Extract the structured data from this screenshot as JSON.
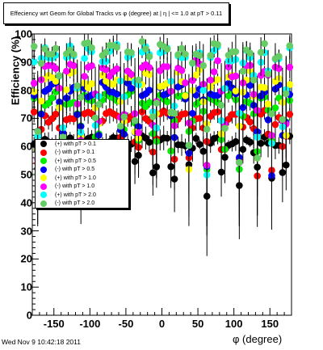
{
  "title": "Effeciency wrt Geom for Global Tracks vs φ (degree) at |  η | <= 1.0 at pT > 0.11",
  "date_stamp": "Wed Nov  9 10:42:18 2011",
  "colors": {
    "background": "#ffffff",
    "frame": "#000000",
    "error_bar": "#000000"
  },
  "chart_data": {
    "type": "scatter",
    "title": "Effeciency wrt Geom for Global Tracks vs φ (degree) at |  η | <= 1.0 at pT > 0.11",
    "xlabel": "φ (degree)",
    "ylabel": "Efficiency (%)",
    "xlim": [
      -180,
      180
    ],
    "ylim": [
      0,
      100
    ],
    "x_ticks": [
      -150,
      -100,
      -50,
      0,
      50,
      100,
      150
    ],
    "y_ticks": [
      0,
      10,
      20,
      30,
      40,
      50,
      60,
      70,
      80,
      90,
      100
    ],
    "grid": false,
    "legend_position": "center-left",
    "series": [
      {
        "name": "(+) with pT > 0.1",
        "color": "#000000",
        "baseline": 62,
        "amp": 1.5,
        "spread": 1,
        "dip_depth": 22
      },
      {
        "name": "(-) with pT > 0.1",
        "color": "#ff0000",
        "baseline": 71,
        "amp": 1.5,
        "spread": 2,
        "dip_depth": 25
      },
      {
        "name": "(+) with pT > 0.5",
        "color": "#00ee00",
        "baseline": 77,
        "amp": 2,
        "spread": 2,
        "dip_depth": 30
      },
      {
        "name": "(-) with pT > 0.5",
        "color": "#0000ff",
        "baseline": 80,
        "amp": 2,
        "spread": 2,
        "dip_depth": 32
      },
      {
        "name": "(+) with pT > 1.0",
        "color": "#ffff00",
        "baseline": 84,
        "amp": 2,
        "spread": 3,
        "dip_depth": 35
      },
      {
        "name": "(-) with pT > 1.0",
        "color": "#ff00ff",
        "baseline": 88,
        "amp": 2,
        "spread": 3,
        "dip_depth": 38
      },
      {
        "name": "(+) with pT > 2.0",
        "color": "#00ffff",
        "baseline": 93,
        "amp": 2,
        "spread": 3,
        "dip_depth": 45
      },
      {
        "name": "(-) with pT > 2.0",
        "color": "#66cc66",
        "baseline": 95,
        "amp": 2,
        "spread": 3,
        "dip_depth": 50
      }
    ],
    "n_points": 72,
    "dips_deg": [
      -172,
      -138,
      -114,
      -90,
      -55,
      -35,
      -10,
      15,
      38,
      62,
      85,
      108,
      132,
      152,
      170
    ]
  }
}
